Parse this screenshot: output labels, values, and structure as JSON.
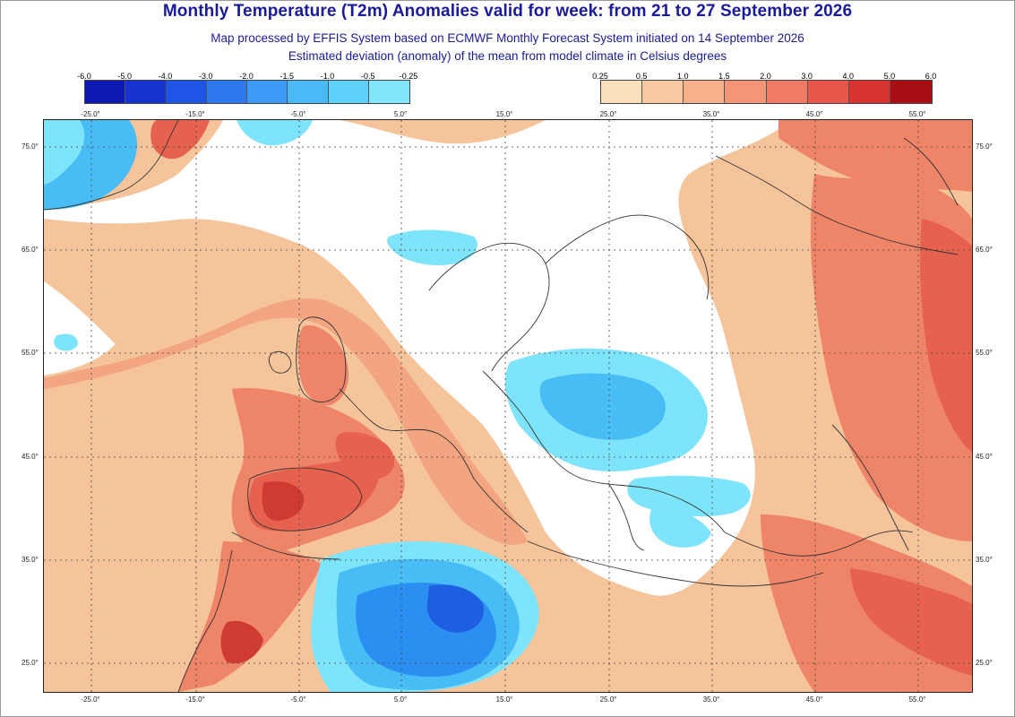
{
  "header": {
    "title": "Monthly Temperature (T2m) Anomalies valid for week: from 21 to 27 September 2026",
    "subtitle1": "Map processed by EFFIS System based on ECMWF Monthly Forecast System initiated on 14 September 2026",
    "subtitle2": "Estimated deviation (anomaly) of the mean from model climate in Celsius degrees"
  },
  "legend_negative": {
    "ticks": [
      "-6.0",
      "-5.0",
      "-4.0",
      "-3.0",
      "-2.0",
      "-1.5",
      "-1.0",
      "-0.5",
      "-0.25"
    ],
    "colors": [
      "#0d19b3",
      "#1533cf",
      "#1e55e6",
      "#2c79f0",
      "#3a9af5",
      "#4ab9f8",
      "#5ed1fa",
      "#82e7fc"
    ]
  },
  "legend_positive": {
    "ticks": [
      "0.25",
      "0.5",
      "1.0",
      "1.5",
      "2.0",
      "3.0",
      "4.0",
      "5.0",
      "6.0"
    ],
    "colors": [
      "#fbe0bd",
      "#f8c8a0",
      "#f6b08a",
      "#f49577",
      "#f07a63",
      "#e9574a",
      "#d8332f",
      "#a80f14"
    ]
  },
  "map": {
    "lon_labels": [
      "-25.0°",
      "-15.0°",
      "-5.0°",
      "5.0°",
      "15.0°",
      "25.0°",
      "35.0°",
      "45.0°",
      "55.0°"
    ],
    "lat_labels": [
      "75.0°",
      "65.0°",
      "55.0°",
      "45.0°",
      "35.0°",
      "25.0°"
    ],
    "palette": {
      "white": "#ffffff",
      "warm1": "#f8ddc0",
      "warm2": "#f5c49b",
      "warm3": "#f2a580",
      "warm4": "#ee8468",
      "warm5": "#e6624e",
      "warm6": "#cf3a33",
      "cool1": "#7ee4fb",
      "cool2": "#48bdf5",
      "cool3": "#2a8ff0",
      "cool4": "#1e5ee0"
    }
  }
}
